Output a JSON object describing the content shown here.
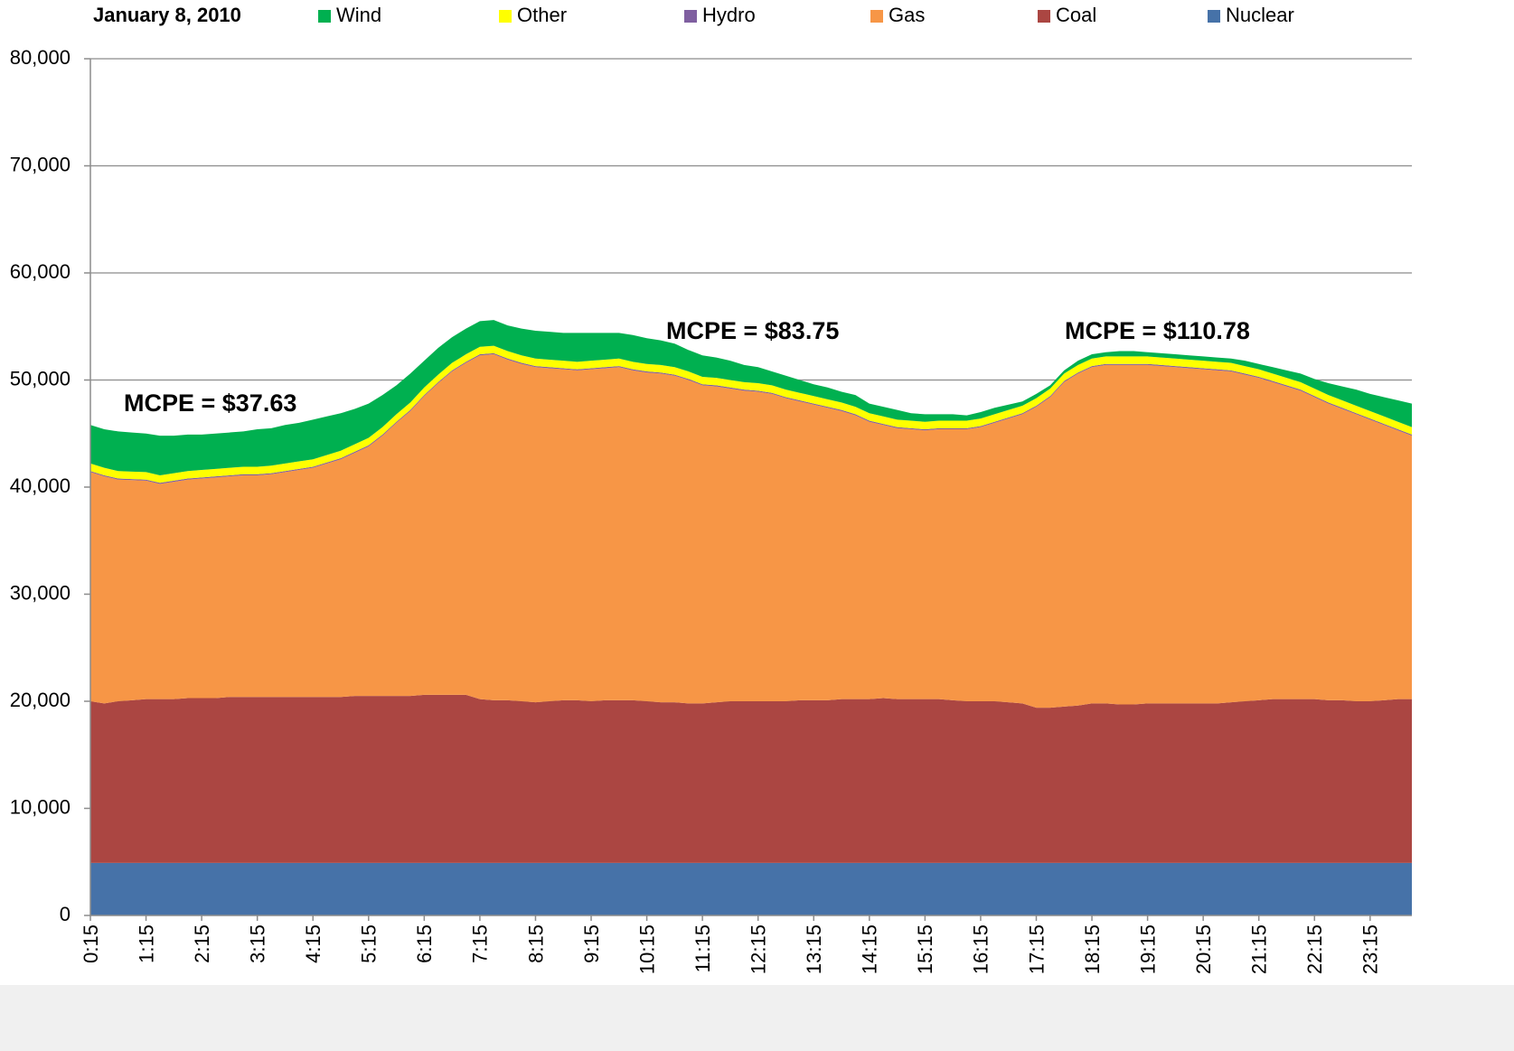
{
  "chart_data": {
    "type": "stacked-area",
    "title": "January 8, 2010",
    "categories": [
      "0:15",
      null,
      null,
      null,
      "1:15",
      null,
      null,
      null,
      "2:15",
      null,
      null,
      null,
      "3:15",
      null,
      null,
      null,
      "4:15",
      null,
      null,
      null,
      "5:15",
      null,
      null,
      null,
      "6:15",
      null,
      null,
      null,
      "7:15",
      null,
      null,
      null,
      "8:15",
      null,
      null,
      null,
      "9:15",
      null,
      null,
      null,
      "10:15",
      null,
      null,
      null,
      "11:15",
      null,
      null,
      null,
      "12:15",
      null,
      null,
      null,
      "13:15",
      null,
      null,
      null,
      "14:15",
      null,
      null,
      null,
      "15:15",
      null,
      null,
      null,
      "16:15",
      null,
      null,
      null,
      "17:15",
      null,
      null,
      null,
      "18:15",
      null,
      null,
      null,
      "19:15",
      null,
      null,
      null,
      "20:15",
      null,
      null,
      null,
      "21:15",
      null,
      null,
      null,
      "22:15",
      null,
      null,
      null,
      "23:15",
      null,
      null,
      null
    ],
    "series": [
      {
        "name": "Nuclear",
        "color": "#4672a8",
        "values": [
          4900,
          4900,
          4900,
          4900,
          4900,
          4900,
          4900,
          4900,
          4900,
          4900,
          4900,
          4900,
          4900,
          4900,
          4900,
          4900,
          4900,
          4900,
          4900,
          4900,
          4900,
          4900,
          4900,
          4900,
          4900,
          4900,
          4900,
          4900,
          4900,
          4900,
          4900,
          4900,
          4900,
          4900,
          4900,
          4900,
          4900,
          4900,
          4900,
          4900,
          4900,
          4900,
          4900,
          4900,
          4900,
          4900,
          4900,
          4900,
          4900,
          4900,
          4900,
          4900,
          4900,
          4900,
          4900,
          4900,
          4900,
          4900,
          4900,
          4900,
          4900,
          4900,
          4900,
          4900,
          4900,
          4900,
          4900,
          4900,
          4900,
          4900,
          4900,
          4900,
          4900,
          4900,
          4900,
          4900,
          4900,
          4900,
          4900,
          4900,
          4900,
          4900,
          4900,
          4900,
          4900,
          4900,
          4900,
          4900,
          4900,
          4900,
          4900,
          4900,
          4900,
          4900,
          4900,
          4900
        ]
      },
      {
        "name": "Coal",
        "color": "#ab4642",
        "values": [
          15100,
          14900,
          15100,
          15200,
          15300,
          15300,
          15300,
          15400,
          15400,
          15400,
          15500,
          15500,
          15500,
          15500,
          15500,
          15500,
          15500,
          15500,
          15500,
          15600,
          15600,
          15600,
          15600,
          15600,
          15700,
          15700,
          15700,
          15700,
          15300,
          15200,
          15200,
          15100,
          15000,
          15100,
          15200,
          15200,
          15100,
          15200,
          15200,
          15200,
          15100,
          15000,
          15000,
          14900,
          14900,
          15000,
          15100,
          15100,
          15100,
          15100,
          15100,
          15200,
          15200,
          15200,
          15300,
          15300,
          15300,
          15400,
          15300,
          15300,
          15300,
          15300,
          15200,
          15100,
          15100,
          15100,
          15000,
          14900,
          14500,
          14500,
          14600,
          14700,
          14900,
          14900,
          14800,
          14800,
          14900,
          14900,
          14900,
          14900,
          14900,
          14900,
          15000,
          15100,
          15200,
          15300,
          15300,
          15300,
          15300,
          15200,
          15200,
          15100,
          15100,
          15200,
          15300,
          15300
        ]
      },
      {
        "name": "Gas",
        "color": "#f79646",
        "values": [
          21400,
          21200,
          20700,
          20550,
          20400,
          20100,
          20300,
          20400,
          20500,
          20600,
          20600,
          20700,
          20700,
          20800,
          21000,
          21200,
          21400,
          21800,
          22200,
          22700,
          23300,
          24300,
          25500,
          26600,
          27900,
          29100,
          30200,
          31000,
          32100,
          32300,
          31800,
          31500,
          31300,
          31100,
          30900,
          30800,
          31000,
          31000,
          31100,
          30800,
          30700,
          30700,
          30500,
          30200,
          29700,
          29500,
          29200,
          29000,
          28900,
          28700,
          28300,
          27900,
          27600,
          27300,
          26900,
          26500,
          25900,
          25500,
          25300,
          25200,
          25100,
          25200,
          25300,
          25400,
          25600,
          26000,
          26500,
          27000,
          28100,
          29000,
          30300,
          31000,
          31400,
          31600,
          31700,
          31700,
          31600,
          31500,
          31400,
          31300,
          31200,
          31100,
          30900,
          30500,
          30100,
          29600,
          29200,
          28800,
          28200,
          27700,
          27200,
          26800,
          26300,
          25700,
          25100,
          24600
        ]
      },
      {
        "name": "Hydro",
        "color": "#7f5fa0",
        "values": [
          100,
          100,
          100,
          100,
          100,
          100,
          100,
          100,
          100,
          100,
          100,
          100,
          100,
          100,
          100,
          100,
          100,
          100,
          100,
          100,
          100,
          100,
          100,
          100,
          100,
          100,
          100,
          100,
          100,
          100,
          100,
          100,
          100,
          100,
          100,
          100,
          100,
          100,
          100,
          100,
          100,
          100,
          100,
          100,
          100,
          100,
          100,
          100,
          100,
          100,
          100,
          100,
          100,
          100,
          100,
          100,
          100,
          100,
          100,
          100,
          100,
          100,
          100,
          100,
          100,
          100,
          100,
          100,
          100,
          100,
          100,
          100,
          100,
          100,
          100,
          100,
          100,
          100,
          100,
          100,
          100,
          100,
          100,
          100,
          100,
          100,
          100,
          100,
          100,
          100,
          100,
          100,
          100,
          100,
          100,
          100
        ]
      },
      {
        "name": "Other",
        "color": "#ffff00",
        "values": [
          700,
          700,
          700,
          700,
          700,
          700,
          700,
          700,
          700,
          700,
          700,
          700,
          700,
          700,
          700,
          700,
          700,
          700,
          700,
          700,
          700,
          700,
          700,
          700,
          700,
          700,
          700,
          700,
          700,
          700,
          700,
          700,
          700,
          700,
          700,
          700,
          700,
          700,
          700,
          700,
          700,
          700,
          700,
          700,
          700,
          700,
          700,
          700,
          700,
          700,
          700,
          700,
          700,
          700,
          700,
          700,
          700,
          700,
          700,
          700,
          700,
          700,
          700,
          700,
          700,
          700,
          700,
          700,
          700,
          700,
          700,
          700,
          700,
          700,
          700,
          700,
          700,
          700,
          700,
          700,
          700,
          700,
          700,
          700,
          700,
          700,
          700,
          700,
          700,
          700,
          700,
          700,
          700,
          700,
          700,
          700
        ]
      },
      {
        "name": "Wind",
        "color": "#00b050",
        "values": [
          3600,
          3600,
          3700,
          3650,
          3600,
          3700,
          3500,
          3400,
          3300,
          3300,
          3300,
          3300,
          3500,
          3500,
          3600,
          3600,
          3700,
          3600,
          3500,
          3300,
          3200,
          3000,
          2700,
          2700,
          2500,
          2500,
          2400,
          2400,
          2400,
          2400,
          2400,
          2500,
          2600,
          2600,
          2600,
          2700,
          2600,
          2500,
          2400,
          2500,
          2400,
          2300,
          2200,
          2000,
          2000,
          1900,
          1800,
          1600,
          1500,
          1300,
          1300,
          1200,
          1100,
          1100,
          1000,
          1100,
          900,
          900,
          900,
          700,
          700,
          600,
          600,
          500,
          600,
          600,
          500,
          400,
          400,
          300,
          300,
          400,
          400,
          400,
          500,
          500,
          400,
          400,
          400,
          400,
          400,
          400,
          400,
          500,
          500,
          600,
          700,
          800,
          900,
          1100,
          1300,
          1500,
          1600,
          1800,
          2000,
          2200
        ]
      }
    ],
    "ylim": [
      0,
      80000
    ],
    "yticks": [
      0,
      {
        "value": 10000,
        "label": "10,000"
      },
      {
        "value": 20000,
        "label": "20,000"
      },
      {
        "value": 30000,
        "label": "30,000"
      },
      {
        "value": 40000,
        "label": "40,000"
      },
      {
        "value": 50000,
        "label": "50,000"
      },
      {
        "value": 60000,
        "label": "60,000"
      },
      {
        "value": 70000,
        "label": "70,000"
      },
      {
        "value": 80000,
        "label": "80,000"
      }
    ],
    "grid": true,
    "legend": "top",
    "annotations": [
      "MCPE = $37.63",
      "MCPE = $83.75",
      "MCPE = $110.78"
    ]
  }
}
